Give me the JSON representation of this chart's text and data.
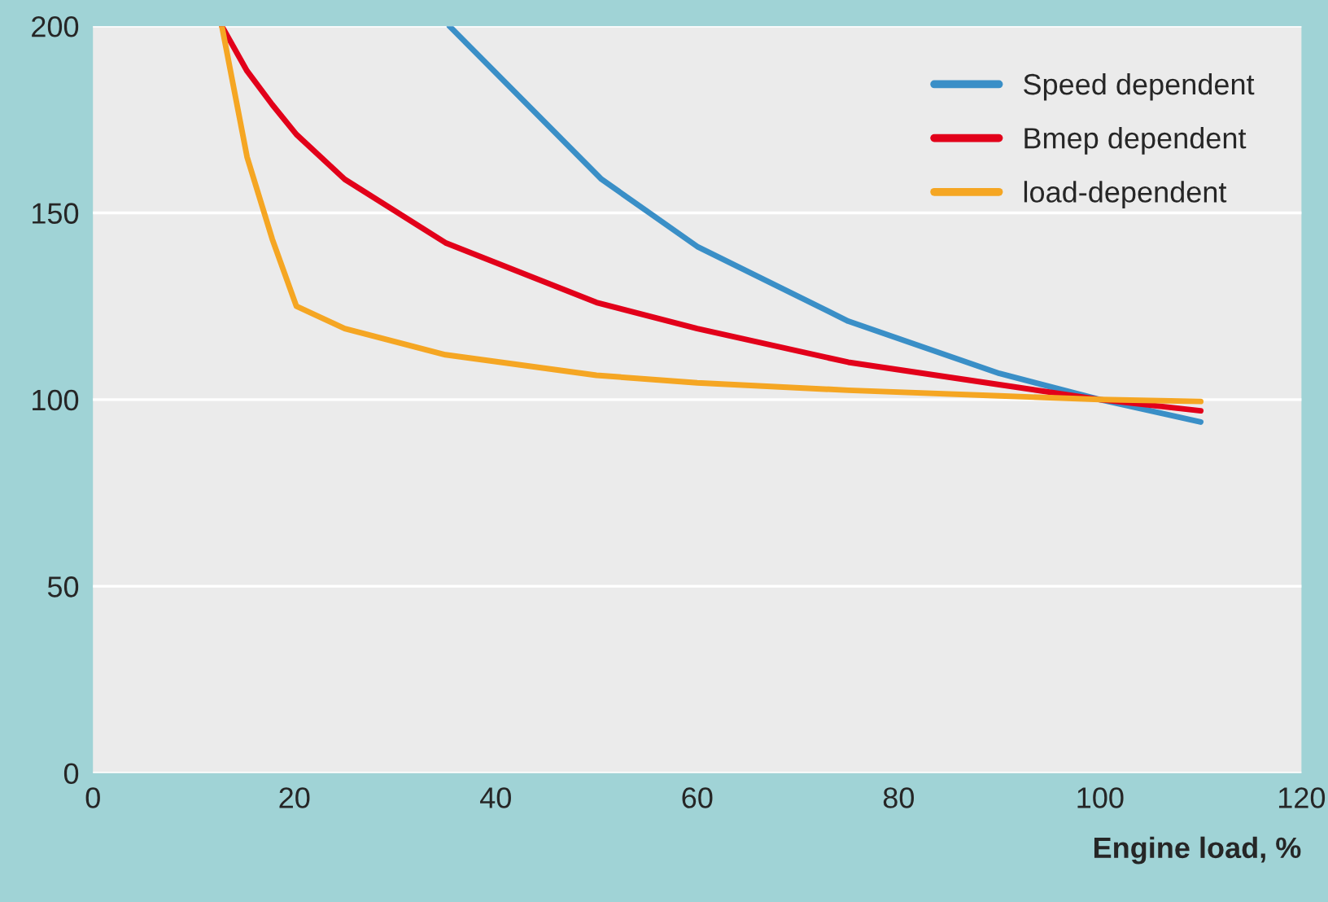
{
  "chart_data": {
    "type": "line",
    "xlabel": "Engine load, %",
    "xlim": [
      0,
      120
    ],
    "xticks": [
      0,
      20,
      40,
      60,
      80,
      100,
      120
    ],
    "ylim": [
      0,
      200
    ],
    "yticks": [
      0,
      50,
      100,
      150,
      200
    ],
    "grid": "y",
    "legend": "top right",
    "marker": "none",
    "line_style": "solid",
    "series": [
      {
        "name": "Speed dependent",
        "color": "#3a8fc7",
        "x": [
          35.4,
          50.5,
          60,
          75,
          90,
          100,
          110
        ],
        "values": [
          200,
          159,
          141,
          121,
          107,
          100,
          94
        ]
      },
      {
        "name": "Bmep dependent",
        "color": "#e2001a",
        "x": [
          12.8,
          15.3,
          17.8,
          20.2,
          25,
          35,
          50,
          60,
          75,
          90,
          100,
          110
        ],
        "values": [
          200,
          188,
          179,
          171,
          159,
          142,
          126,
          119,
          110,
          104,
          100,
          97
        ]
      },
      {
        "name": "load-dependent",
        "color": "#f5a623",
        "x": [
          12.8,
          15.3,
          17.8,
          20.2,
          25,
          35,
          50,
          60,
          75,
          90,
          100,
          110
        ],
        "values": [
          200,
          165,
          143,
          125,
          119,
          112,
          106.5,
          104.5,
          102.5,
          101,
          100,
          99.5
        ]
      }
    ]
  }
}
